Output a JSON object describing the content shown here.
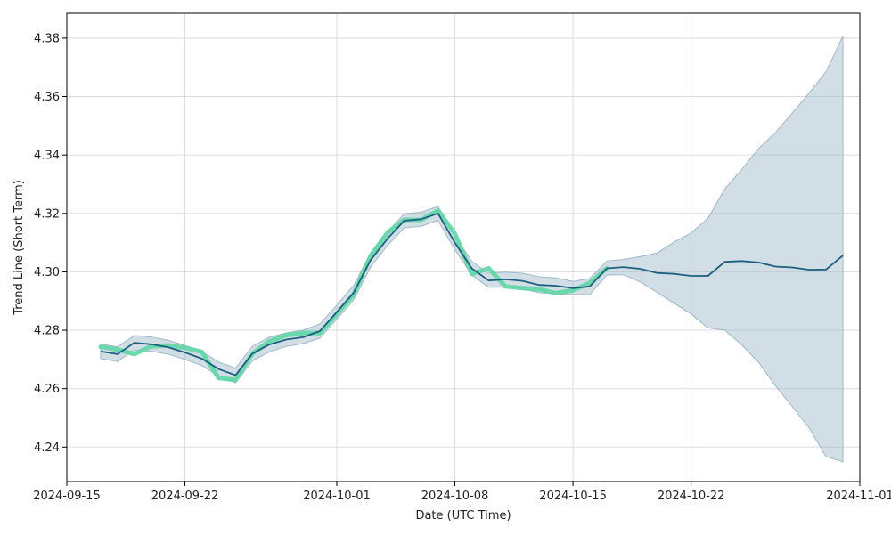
{
  "chart_data": {
    "type": "line",
    "title": "",
    "xlabel": "Date (UTC Time)",
    "ylabel": "Trend Line (Short Term)",
    "x_range": [
      "2024-09-15T00:00:00",
      "2024-11-01T00:00:00"
    ],
    "ylim": [
      4.2282,
      4.3885
    ],
    "grid": true,
    "legend": "none",
    "x_ticks": [
      "2024-09-15",
      "2024-09-22",
      "2024-10-01",
      "2024-10-08",
      "2024-10-15",
      "2024-10-22",
      "2024-11-01"
    ],
    "y_ticks": [
      4.24,
      4.26,
      4.28,
      4.3,
      4.32,
      4.34,
      4.36,
      4.38
    ],
    "colors": {
      "trend": "#1f5f80",
      "actual": "#5fd6a6",
      "band": "#9fb9c8",
      "grid": "#dddddd"
    },
    "series": [
      {
        "x": [
          "2024-09-17",
          "2024-09-18",
          "2024-09-19",
          "2024-09-20",
          "2024-09-21",
          "2024-09-22",
          "2024-09-23",
          "2024-09-24",
          "2024-09-25",
          "2024-09-26",
          "2024-09-27",
          "2024-09-28",
          "2024-09-29",
          "2024-09-30",
          "2024-10-01",
          "2024-10-02",
          "2024-10-03",
          "2024-10-04",
          "2024-10-05",
          "2024-10-06",
          "2024-10-07",
          "2024-10-08",
          "2024-10-09",
          "2024-10-10",
          "2024-10-11",
          "2024-10-12",
          "2024-10-13",
          "2024-10-14",
          "2024-10-15",
          "2024-10-16",
          "2024-10-17",
          "2024-10-18",
          "2024-10-19",
          "2024-10-20",
          "2024-10-21",
          "2024-10-22",
          "2024-10-23",
          "2024-10-24",
          "2024-10-25",
          "2024-10-26",
          "2024-10-27",
          "2024-10-28",
          "2024-10-29",
          "2024-10-30",
          "2024-10-31"
        ],
        "y": [
          4.2728,
          4.2718,
          4.2757,
          4.2752,
          4.2742,
          4.2724,
          4.2703,
          4.2667,
          4.2646,
          4.272,
          4.2751,
          4.2768,
          4.2776,
          4.2797,
          4.2862,
          4.2928,
          4.304,
          4.3113,
          4.3175,
          4.318,
          4.32,
          4.31,
          4.3012,
          4.297,
          4.2974,
          4.2969,
          4.2955,
          4.2952,
          4.2944,
          4.295,
          4.3012,
          4.3016,
          4.301,
          4.2996,
          4.2993,
          4.2986,
          4.2986,
          4.3034,
          4.3037,
          4.3032,
          4.3018,
          4.3015,
          4.3007,
          4.3008,
          4.3056
        ],
        "lower": [
          4.2703,
          4.2693,
          4.2732,
          4.2728,
          4.2718,
          4.27,
          4.2679,
          4.2643,
          4.262,
          4.2695,
          4.2726,
          4.2745,
          4.2754,
          4.2773,
          4.2838,
          4.2903,
          4.3016,
          4.309,
          4.3151,
          4.3156,
          4.3176,
          4.3076,
          4.2989,
          4.2947,
          4.2947,
          4.2942,
          4.2928,
          4.2925,
          4.2922,
          4.2922,
          4.2989,
          4.299,
          4.2965,
          4.2929,
          4.2892,
          4.2856,
          4.2808,
          4.28,
          4.275,
          4.269,
          4.261,
          4.2538,
          4.2465,
          4.2367,
          4.235
        ],
        "upper": [
          4.2753,
          4.2743,
          4.2782,
          4.2777,
          4.2766,
          4.2748,
          4.2727,
          4.2691,
          4.267,
          4.2745,
          4.2776,
          4.2791,
          4.28,
          4.2821,
          4.2886,
          4.2953,
          4.3064,
          4.3136,
          4.3199,
          4.3204,
          4.3224,
          4.3124,
          4.3036,
          4.2995,
          4.2999,
          4.2995,
          4.2983,
          4.2979,
          4.2967,
          4.2977,
          4.3037,
          4.3042,
          4.3052,
          4.3065,
          4.3102,
          4.3133,
          4.3183,
          4.3284,
          4.335,
          4.3422,
          4.3476,
          4.3544,
          4.3612,
          4.3685,
          4.3808
        ]
      },
      {
        "x": [
          "2024-09-17",
          "2024-09-18",
          "2024-09-19",
          "2024-09-20",
          "2024-09-21",
          "2024-09-22",
          "2024-09-23",
          "2024-09-24",
          "2024-09-25",
          "2024-09-26",
          "2024-09-27",
          "2024-09-28",
          "2024-09-29",
          "2024-09-30",
          "2024-10-01",
          "2024-10-02",
          "2024-10-03",
          "2024-10-04",
          "2024-10-05",
          "2024-10-06",
          "2024-10-07",
          "2024-10-08",
          "2024-10-09",
          "2024-10-10",
          "2024-10-11",
          "2024-10-12",
          "2024-10-13",
          "2024-10-14",
          "2024-10-15",
          "2024-10-16",
          "2024-10-17"
        ],
        "y": [
          4.2743,
          4.2734,
          4.2718,
          4.2745,
          4.2748,
          4.274,
          4.2726,
          4.2636,
          4.263,
          4.272,
          4.2762,
          4.2783,
          4.279,
          4.279,
          4.2856,
          4.2922,
          4.3054,
          4.3134,
          4.3178,
          4.3178,
          4.321,
          4.3131,
          4.2993,
          4.3012,
          4.295,
          4.2944,
          4.294,
          4.2927,
          4.2937,
          4.2962,
          4.3012
        ]
      }
    ]
  }
}
